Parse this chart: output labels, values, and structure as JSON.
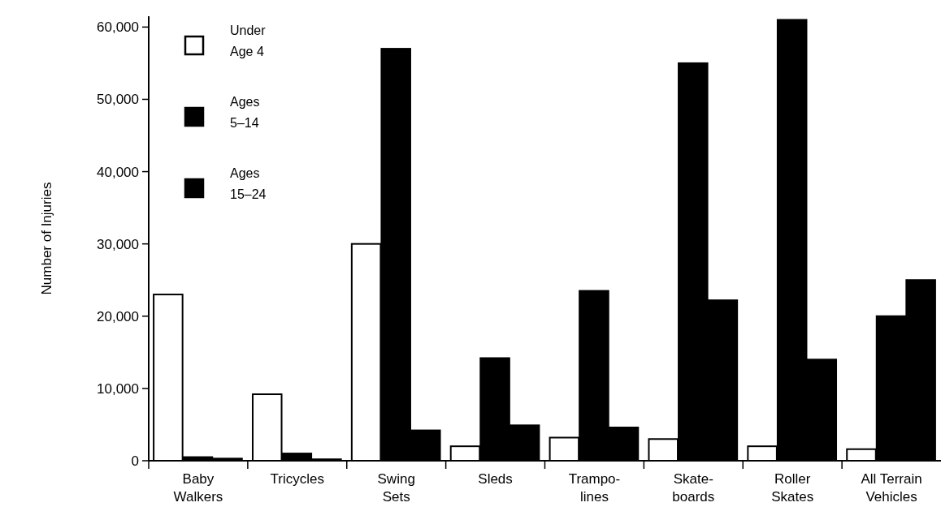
{
  "chart_data": {
    "type": "bar",
    "ylabel": "Number of Injuries",
    "categories": [
      "Baby\nWalkers",
      "Tricycles",
      "Swing\nSets",
      "Sleds",
      "Trampo-\nlines",
      "Skate-\nboards",
      "Roller\nSkates",
      "All Terrain\nVehicles"
    ],
    "series": [
      {
        "name": "Under\nAge 4",
        "color": "#ffffff",
        "values": [
          23000,
          9200,
          30000,
          2000,
          3200,
          3000,
          2000,
          1600
        ]
      },
      {
        "name": "Ages\n5–14",
        "color": "#000000",
        "values": [
          500,
          1000,
          57000,
          14200,
          23500,
          55000,
          61000,
          20000
        ]
      },
      {
        "name": "Ages\n15–24",
        "color": "#000000",
        "values": [
          300,
          200,
          4200,
          4900,
          4600,
          22200,
          14000,
          25000
        ]
      }
    ],
    "ylim": [
      0,
      61500
    ],
    "yticks": [
      0,
      {
        "value": 10000,
        "label": "10,000"
      },
      {
        "value": 20000,
        "label": "20,000"
      },
      {
        "value": 30000,
        "label": "30,000"
      },
      {
        "value": 40000,
        "label": "40,000"
      },
      {
        "value": 50000,
        "label": "50,000"
      },
      {
        "value": 60000,
        "label": "60,000"
      }
    ],
    "legend": "top left"
  }
}
